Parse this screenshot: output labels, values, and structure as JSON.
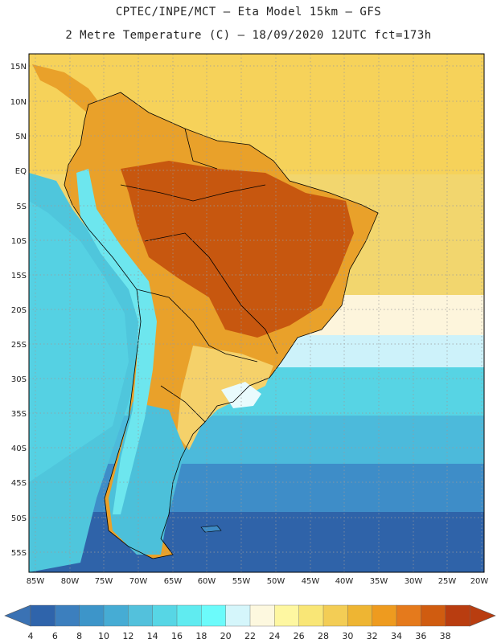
{
  "header": {
    "line1": "CPTEC/INPE/MCT –  Eta Model 15km – GFS",
    "line2": "2 Metre Temperature (C) – 18/09/2020 12UTC fct=173h"
  },
  "axes": {
    "lat_labels": [
      "15N",
      "10N",
      "5N",
      "EQ",
      "5S",
      "10S",
      "15S",
      "20S",
      "25S",
      "30S",
      "35S",
      "40S",
      "45S",
      "50S",
      "55S"
    ],
    "lon_labels": [
      "85W",
      "80W",
      "75W",
      "70W",
      "65W",
      "60W",
      "55W",
      "50W",
      "45W",
      "40W",
      "35W",
      "30W",
      "25W",
      "20W"
    ]
  },
  "colorbar": {
    "labels": [
      "4",
      "6",
      "8",
      "10",
      "12",
      "14",
      "16",
      "18",
      "20",
      "22",
      "24",
      "26",
      "28",
      "30",
      "32",
      "34",
      "36",
      "38"
    ],
    "below_color": "#3a72b4",
    "above_color": "#b93d10",
    "colors": [
      "#2f64ab",
      "#3c7fbe",
      "#3d95c9",
      "#46acd4",
      "#53c1dc",
      "#57d6e5",
      "#60ebf0",
      "#6cfbfb",
      "#d5f6fb",
      "#fdf8df",
      "#fef7a1",
      "#f9e676",
      "#f3cd55",
      "#eeb533",
      "#ee9b1f",
      "#e57a1c",
      "#d05c10",
      "#b93d10"
    ]
  },
  "map_colors": {
    "ocean_cool": "#2f63a9",
    "ocean_mid": "#3e8dc8",
    "ocean_warm": "#56cfe2",
    "ocean_tropical": "#f6d25a",
    "land_hot": "#c7570f",
    "land_warm": "#e9a12a",
    "land_mild": "#f5d16a",
    "andes": "#6de6ee"
  }
}
